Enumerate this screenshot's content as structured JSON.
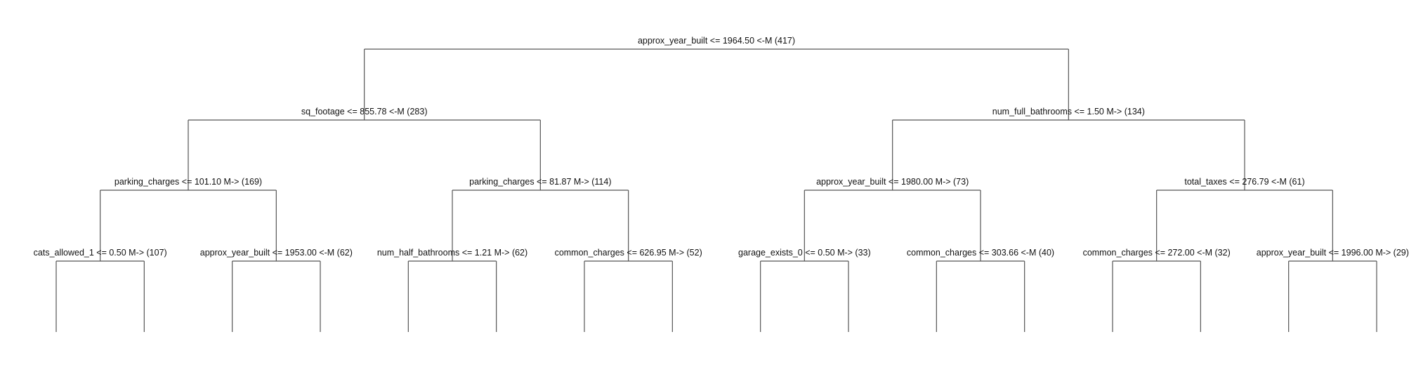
{
  "tree": {
    "label": "approx_year_built <= 1964.50 <-M (417)",
    "children": [
      {
        "label": "sq_footage <= 855.78 <-M (283)",
        "children": [
          {
            "label": "parking_charges <= 101.10 M-> (169)",
            "children": [
              {
                "label": "cats_allowed_1 <= 0.50 M-> (107)",
                "children": [
                  {},
                  {}
                ]
              },
              {
                "label": "approx_year_built <= 1953.00 <-M (62)",
                "children": [
                  {},
                  {}
                ]
              }
            ]
          },
          {
            "label": "parking_charges <= 81.87 M-> (114)",
            "children": [
              {
                "label": "num_half_bathrooms <= 1.21 M-> (62)",
                "children": [
                  {},
                  {}
                ]
              },
              {
                "label": "common_charges <= 626.95 M-> (52)",
                "children": [
                  {},
                  {}
                ]
              }
            ]
          }
        ]
      },
      {
        "label": "num_full_bathrooms <= 1.50 M-> (134)",
        "children": [
          {
            "label": "approx_year_built <= 1980.00 M-> (73)",
            "children": [
              {
                "label": "garage_exists_0 <= 0.50 M-> (33)",
                "children": [
                  {},
                  {}
                ]
              },
              {
                "label": "common_charges <= 303.66 <-M (40)",
                "children": [
                  {},
                  {}
                ]
              }
            ]
          },
          {
            "label": "total_taxes <= 276.79 <-M (61)",
            "children": [
              {
                "label": "common_charges <= 272.00 <-M (32)",
                "children": [
                  {},
                  {}
                ]
              },
              {
                "label": "approx_year_built <= 1996.00 M-> (29)",
                "children": [
                  {},
                  {}
                ]
              }
            ]
          }
        ]
      }
    ]
  }
}
